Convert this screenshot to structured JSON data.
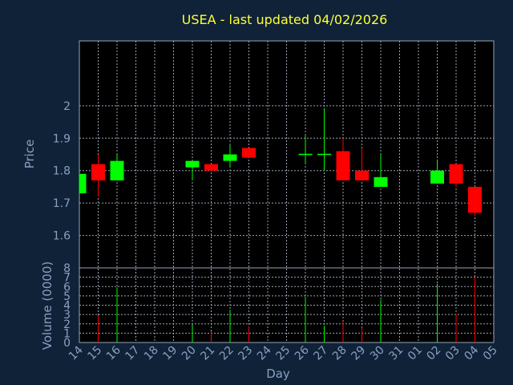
{
  "chart_data": {
    "type": "candlestick",
    "title": "USEA - last updated 04/02/2026",
    "xlabel": "Day",
    "ylabel_price": "Price",
    "ylabel_volume": "Volume (0000)",
    "x_ticks": [
      "14",
      "15",
      "16",
      "17",
      "18",
      "19",
      "20",
      "21",
      "22",
      "23",
      "24",
      "25",
      "26",
      "27",
      "28",
      "29",
      "30",
      "31",
      "01",
      "02",
      "03",
      "04",
      "05"
    ],
    "price_ticks": [
      "1.6",
      "1.7",
      "1.8",
      "1.9",
      "2"
    ],
    "price_range": [
      1.5,
      2.2
    ],
    "volume_ticks": [
      "0",
      "1",
      "2",
      "3",
      "4",
      "5",
      "6",
      "7",
      "8"
    ],
    "volume_range": [
      0,
      8
    ],
    "grid": true,
    "colors": {
      "background": "#0f2238",
      "panel": "#000000",
      "grid": "#9aa4b4",
      "title": "#ffff33",
      "axis_text": "#8aa0c0",
      "up": "#00ff00",
      "down": "#ff0000"
    },
    "candles": [
      {
        "day": "14",
        "open": 1.73,
        "high": 1.79,
        "low": 1.73,
        "close": 1.79,
        "volume": 0.0
      },
      {
        "day": "15",
        "open": 1.82,
        "high": 1.85,
        "low": 1.72,
        "close": 1.77,
        "volume": 2.9
      },
      {
        "day": "16",
        "open": 1.77,
        "high": 1.85,
        "low": 1.77,
        "close": 1.83,
        "volume": 5.9
      },
      {
        "day": "20",
        "open": 1.81,
        "high": 1.83,
        "low": 1.77,
        "close": 1.83,
        "volume": 1.9
      },
      {
        "day": "21",
        "open": 1.82,
        "high": 1.82,
        "low": 1.8,
        "close": 1.8,
        "volume": 1.2
      },
      {
        "day": "22",
        "open": 1.83,
        "high": 1.88,
        "low": 1.81,
        "close": 1.85,
        "volume": 3.5
      },
      {
        "day": "23",
        "open": 1.87,
        "high": 1.87,
        "low": 1.84,
        "close": 1.84,
        "volume": 1.7
      },
      {
        "day": "26",
        "open": 1.85,
        "high": 1.91,
        "low": 1.82,
        "close": 1.85,
        "volume": 4.9
      },
      {
        "day": "27",
        "open": 1.85,
        "high": 1.99,
        "low": 1.8,
        "close": 1.85,
        "volume": 1.8
      },
      {
        "day": "28",
        "open": 1.86,
        "high": 1.9,
        "low": 1.77,
        "close": 1.77,
        "volume": 2.2
      },
      {
        "day": "29",
        "open": 1.8,
        "high": 1.87,
        "low": 1.77,
        "close": 1.77,
        "volume": 1.6
      },
      {
        "day": "30",
        "open": 1.75,
        "high": 1.85,
        "low": 1.75,
        "close": 1.78,
        "volume": 4.6
      },
      {
        "day": "02",
        "open": 1.76,
        "high": 1.83,
        "low": 1.76,
        "close": 1.8,
        "volume": 6.3
      },
      {
        "day": "03",
        "open": 1.82,
        "high": 1.82,
        "low": 1.75,
        "close": 1.76,
        "volume": 3.1
      },
      {
        "day": "04",
        "open": 1.75,
        "high": 1.75,
        "low": 1.66,
        "close": 1.67,
        "volume": 7.0
      }
    ]
  }
}
